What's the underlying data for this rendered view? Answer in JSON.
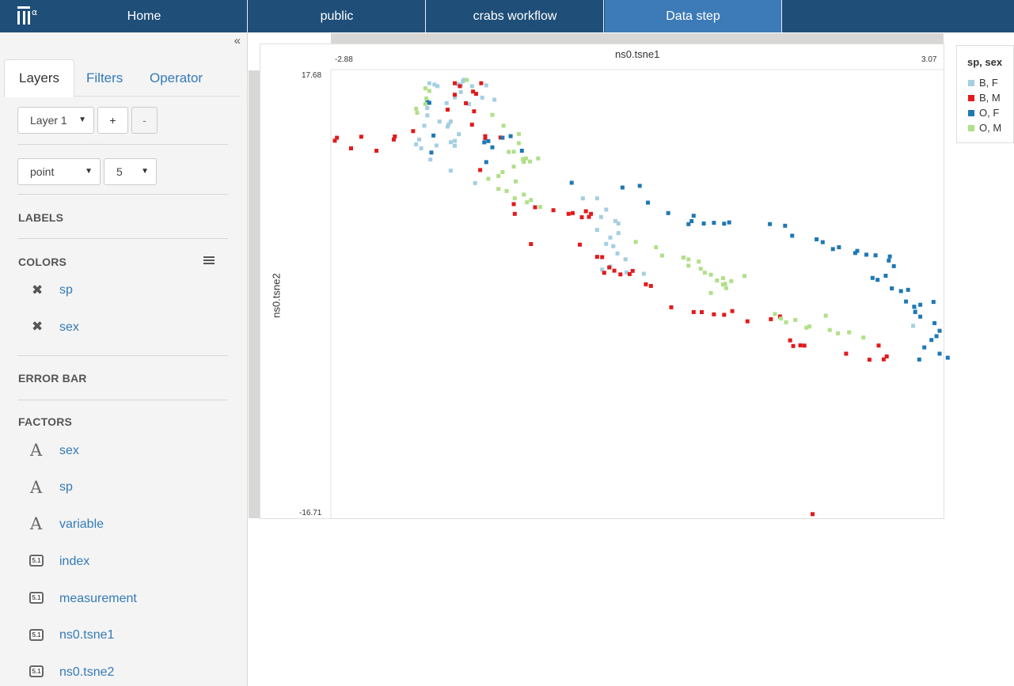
{
  "nav": {
    "logo_alpha": "α",
    "tabs": [
      "Home",
      "public",
      "crabs workflow",
      "Data step"
    ]
  },
  "sidebar": {
    "collapse_glyph": "«",
    "tabs": [
      "Layers",
      "Filters",
      "Operator"
    ],
    "layer_select": "Layer 1",
    "add_label": "+",
    "remove_label": "-",
    "geom_select": "point",
    "size_select": "5",
    "sections": {
      "labels": "LABELS",
      "colors": "COLORS",
      "error_bar": "ERROR BAR",
      "factors": "FACTORS"
    },
    "colors": [
      "sp",
      "sex"
    ],
    "factors": [
      "sex",
      "sp",
      "variable",
      "index",
      "measurement",
      "ns0.tsne1",
      "ns0.tsne2"
    ],
    "numeric_icon_text": "5.1",
    "text_icon_text": "A",
    "remove_glyph": "✖"
  },
  "chart_data": {
    "type": "scatter",
    "title": "",
    "xlabel": "ns0.tsne1",
    "ylabel": "ns0.tsne2",
    "xlim": [
      -2.88,
      3.07
    ],
    "ylim": [
      -16.71,
      17.68
    ],
    "xticks": [
      "-2.88",
      "3.07"
    ],
    "yticks": [
      "17.68",
      "-16.71"
    ],
    "legend_title": "sp, sex",
    "legend_position": "right",
    "grid": false,
    "series": [
      {
        "name": "B, F",
        "color": "#a6cee3",
        "points": [
          [
            -1.87,
            16.82
          ],
          [
            -1.9,
            16.95
          ],
          [
            -1.95,
            17.05
          ],
          [
            -1.62,
            17.2
          ],
          [
            -1.64,
            16.88
          ],
          [
            -1.53,
            16.82
          ],
          [
            -1.39,
            16.88
          ],
          [
            -1.64,
            16.36
          ],
          [
            -1.7,
            15.94
          ],
          [
            -1.78,
            15.49
          ],
          [
            -1.97,
            15.1
          ],
          [
            -1.97,
            14.53
          ],
          [
            -1.77,
            13.65
          ],
          [
            -1.85,
            14.05
          ],
          [
            -1.76,
            13.84
          ],
          [
            -1.88,
            12.17
          ],
          [
            -2.0,
            13.72
          ],
          [
            -1.66,
            13.06
          ],
          [
            -1.7,
            12.15
          ],
          [
            -1.94,
            11.07
          ],
          [
            -1.74,
            12.43
          ],
          [
            -1.7,
            12.54
          ],
          [
            -2.05,
            12.64
          ],
          [
            -2.03,
            11.95
          ],
          [
            -1.74,
            10.2
          ],
          [
            -1.5,
            9.23
          ],
          [
            -0.44,
            8.03
          ],
          [
            -0.3,
            8.03
          ],
          [
            -0.21,
            7.15
          ],
          [
            -0.26,
            6.57
          ],
          [
            -0.12,
            6.26
          ],
          [
            -0.09,
            6.07
          ],
          [
            -0.3,
            5.56
          ],
          [
            -0.09,
            5.31
          ],
          [
            -0.17,
            4.96
          ],
          [
            -0.21,
            4.46
          ],
          [
            -0.14,
            4.29
          ],
          [
            -0.1,
            3.72
          ],
          [
            -0.02,
            3.26
          ],
          [
            -0.17,
            2.69
          ],
          [
            -0.25,
            2.45
          ],
          [
            -0.01,
            2.23
          ],
          [
            0.16,
            2.13
          ],
          [
            2.83,
            -0.71
          ],
          [
            2.81,
            -1.95
          ],
          [
            -1.43,
            15.92
          ],
          [
            -1.56,
            15.42
          ],
          [
            -1.74,
            14.05
          ],
          [
            -1.31,
            15.76
          ],
          [
            -2.08,
            12.26
          ],
          [
            -1.67,
            16.97
          ],
          [
            -1.61,
            17.32
          ]
        ]
      },
      {
        "name": "B, M",
        "color": "#e31a1c",
        "points": [
          [
            -2.88,
            12.55
          ],
          [
            -2.86,
            12.78
          ],
          [
            -2.72,
            11.95
          ],
          [
            -2.62,
            12.86
          ],
          [
            -2.47,
            11.76
          ],
          [
            -2.3,
            12.64
          ],
          [
            -2.29,
            12.88
          ],
          [
            -2.11,
            13.3
          ],
          [
            -1.77,
            14.98
          ],
          [
            -1.7,
            16.15
          ],
          [
            -1.7,
            17.05
          ],
          [
            -1.65,
            16.82
          ],
          [
            -1.52,
            16.4
          ],
          [
            -1.44,
            17.05
          ],
          [
            -1.49,
            16.22
          ],
          [
            -1.59,
            15.48
          ],
          [
            -1.51,
            14.85
          ],
          [
            -1.53,
            13.8
          ],
          [
            -1.4,
            12.9
          ],
          [
            -1.4,
            12.75
          ],
          [
            -1.25,
            12.8
          ],
          [
            -1.45,
            10.25
          ],
          [
            -1.11,
            6.82
          ],
          [
            -1.12,
            7.58
          ],
          [
            -0.91,
            7.33
          ],
          [
            -0.73,
            7.1
          ],
          [
            -0.54,
            6.88
          ],
          [
            -0.41,
            7.02
          ],
          [
            -0.38,
            6.58
          ],
          [
            -0.36,
            6.82
          ],
          [
            -0.45,
            6.55
          ],
          [
            -0.58,
            6.82
          ],
          [
            -0.95,
            4.45
          ],
          [
            -0.47,
            4.41
          ],
          [
            -0.3,
            3.45
          ],
          [
            -0.25,
            3.43
          ],
          [
            -0.18,
            2.62
          ],
          [
            -0.23,
            2.2
          ],
          [
            -0.13,
            2.37
          ],
          [
            0.05,
            2.35
          ],
          [
            -0.07,
            2.08
          ],
          [
            0.02,
            2.1
          ],
          [
            0.18,
            1.3
          ],
          [
            0.23,
            1.17
          ],
          [
            0.43,
            -0.5
          ],
          [
            0.65,
            -0.87
          ],
          [
            0.73,
            -0.88
          ],
          [
            0.85,
            -1.05
          ],
          [
            0.95,
            -1.09
          ],
          [
            1.03,
            -0.8
          ],
          [
            1.18,
            -1.6
          ],
          [
            1.41,
            -1.43
          ],
          [
            1.5,
            -1.22
          ],
          [
            1.6,
            -3.09
          ],
          [
            1.7,
            -3.48
          ],
          [
            1.63,
            -3.53
          ],
          [
            1.74,
            -3.5
          ],
          [
            2.15,
            -4.13
          ],
          [
            2.38,
            -4.6
          ],
          [
            2.47,
            -3.49
          ],
          [
            2.55,
            -4.35
          ],
          [
            2.52,
            -4.58
          ],
          [
            1.82,
            -16.7
          ]
        ]
      },
      {
        "name": "O, F",
        "color": "#1f78b4",
        "points": [
          [
            -1.97,
            15.6
          ],
          [
            -1.95,
            15.51
          ],
          [
            -1.91,
            12.95
          ],
          [
            -1.93,
            11.62
          ],
          [
            -1.23,
            12.78
          ],
          [
            -1.15,
            12.9
          ],
          [
            -1.37,
            12.52
          ],
          [
            -1.39,
            10.87
          ],
          [
            -1.33,
            12.03
          ],
          [
            -1.41,
            12.42
          ],
          [
            -1.04,
            11.76
          ],
          [
            -0.55,
            9.25
          ],
          [
            -0.05,
            8.88
          ],
          [
            0.12,
            9.01
          ],
          [
            0.2,
            7.7
          ],
          [
            0.4,
            6.88
          ],
          [
            0.63,
            6.25
          ],
          [
            0.6,
            6.01
          ],
          [
            0.65,
            6.67
          ],
          [
            0.75,
            6.06
          ],
          [
            0.85,
            6.12
          ],
          [
            0.95,
            6.05
          ],
          [
            1.0,
            6.15
          ],
          [
            1.4,
            6.02
          ],
          [
            1.55,
            5.89
          ],
          [
            1.62,
            5.11
          ],
          [
            1.86,
            4.82
          ],
          [
            1.92,
            4.6
          ],
          [
            2.02,
            4.06
          ],
          [
            2.08,
            4.2
          ],
          [
            2.24,
            3.75
          ],
          [
            2.26,
            3.92
          ],
          [
            2.35,
            3.62
          ],
          [
            2.44,
            3.57
          ],
          [
            2.58,
            3.48
          ],
          [
            2.57,
            3.16
          ],
          [
            2.62,
            2.72
          ],
          [
            2.54,
            1.97
          ],
          [
            2.41,
            1.8
          ],
          [
            2.46,
            1.65
          ],
          [
            2.6,
            0.98
          ],
          [
            2.69,
            0.77
          ],
          [
            2.76,
            0.87
          ],
          [
            2.74,
            -0.05
          ],
          [
            2.82,
            -0.45
          ],
          [
            2.83,
            -0.87
          ],
          [
            2.88,
            -1.23
          ],
          [
            2.88,
            -0.3
          ],
          [
            3.01,
            -0.08
          ],
          [
            3.02,
            -1.74
          ],
          [
            3.07,
            -2.34
          ],
          [
            3.04,
            -2.76
          ],
          [
            2.99,
            -3.06
          ],
          [
            2.92,
            -3.64
          ],
          [
            3.07,
            -4.13
          ],
          [
            2.87,
            -4.59
          ],
          [
            3.15,
            -4.45
          ]
        ]
      },
      {
        "name": "O, M",
        "color": "#b2df8a",
        "points": [
          [
            -1.99,
            16.65
          ],
          [
            -1.95,
            16.45
          ],
          [
            -1.98,
            15.85
          ],
          [
            -1.99,
            15.43
          ],
          [
            -2.08,
            15.05
          ],
          [
            -2.07,
            14.73
          ],
          [
            -1.58,
            17.3
          ],
          [
            -1.33,
            14.57
          ],
          [
            -1.22,
            13.72
          ],
          [
            -1.07,
            13.07
          ],
          [
            -1.07,
            12.36
          ],
          [
            -1.17,
            11.67
          ],
          [
            -1.12,
            11.68
          ],
          [
            -1.03,
            11.1
          ],
          [
            -1.0,
            11.16
          ],
          [
            -0.88,
            11.16
          ],
          [
            -1.02,
            10.88
          ],
          [
            -0.96,
            10.92
          ],
          [
            -1.12,
            10.52
          ],
          [
            -1.23,
            10.09
          ],
          [
            -1.27,
            9.78
          ],
          [
            -1.37,
            9.56
          ],
          [
            -1.1,
            9.36
          ],
          [
            -1.27,
            8.77
          ],
          [
            -1.19,
            8.61
          ],
          [
            -1.11,
            8.04
          ],
          [
            -1.02,
            8.33
          ],
          [
            -0.99,
            7.72
          ],
          [
            -0.95,
            7.9
          ],
          [
            -0.86,
            7.36
          ],
          [
            0.08,
            4.62
          ],
          [
            0.28,
            4.2
          ],
          [
            0.34,
            3.55
          ],
          [
            0.55,
            3.4
          ],
          [
            0.6,
            3.25
          ],
          [
            0.7,
            3.08
          ],
          [
            0.6,
            2.76
          ],
          [
            0.72,
            2.52
          ],
          [
            0.76,
            2.21
          ],
          [
            0.82,
            2.05
          ],
          [
            0.88,
            1.6
          ],
          [
            0.94,
            1.78
          ],
          [
            0.94,
            1.28
          ],
          [
            0.97,
            1.0
          ],
          [
            0.82,
            0.62
          ],
          [
            0.96,
            1.34
          ],
          [
            1.02,
            1.55
          ],
          [
            1.15,
            1.95
          ],
          [
            1.45,
            -1.03
          ],
          [
            1.51,
            -1.38
          ],
          [
            1.56,
            -1.67
          ],
          [
            1.65,
            -1.49
          ],
          [
            1.76,
            -2.1
          ],
          [
            1.79,
            -2.0
          ],
          [
            1.99,
            -2.28
          ],
          [
            2.07,
            -2.54
          ],
          [
            2.18,
            -2.46
          ],
          [
            2.32,
            -2.87
          ],
          [
            1.95,
            -1.16
          ]
        ]
      }
    ]
  }
}
